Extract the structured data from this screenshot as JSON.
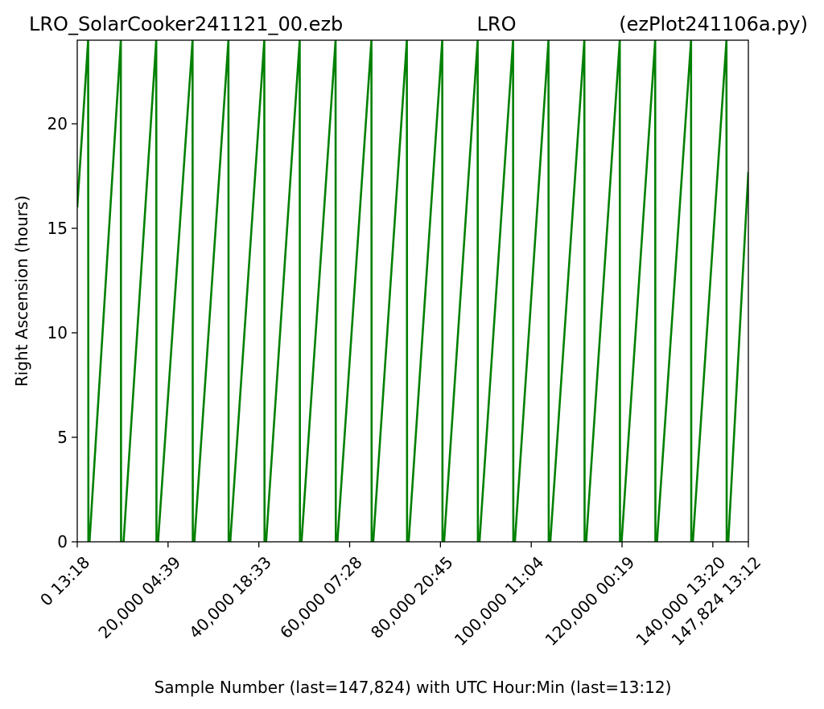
{
  "chart_data": {
    "type": "line",
    "title_left": "LRO_SolarCooker241121_00.ezb",
    "title_center": "LRO",
    "title_right": "(ezPlot241106a.py)",
    "xlabel": "Sample Number (last=147,824) with UTC Hour:Min (last=13:12)",
    "ylabel": "Right Ascension (hours)",
    "xlim": [
      0,
      147824
    ],
    "ylim": [
      0,
      24
    ],
    "yticks": [
      0,
      5,
      10,
      15,
      20
    ],
    "xticks": [
      {
        "value": 0,
        "label": "0  13:18"
      },
      {
        "value": 20000,
        "label": "20,000  04:39"
      },
      {
        "value": 40000,
        "label": "40,000  18:33"
      },
      {
        "value": 60000,
        "label": "60,000  07:28"
      },
      {
        "value": 80000,
        "label": "80,000  20:45"
      },
      {
        "value": 100000,
        "label": "100,000  11:04"
      },
      {
        "value": 120000,
        "label": "120,000  00:19"
      },
      {
        "value": 140000,
        "label": "140,000  13:20"
      },
      {
        "value": 147824,
        "label": "147,824  13:12"
      }
    ],
    "series_color": "#008000",
    "series": [
      {
        "x": [
          0,
          2400,
          2450,
          2700,
          9600,
          9650,
          10200,
          17400,
          17450,
          17800,
          25400,
          25450,
          25800,
          33300,
          33350,
          33700,
          41200,
          41250,
          41600,
          49000,
          49050,
          49400,
          56900,
          56950,
          57300,
          64800,
          64850,
          65200,
          72600,
          72650,
          73000,
          80400,
          80450,
          80800,
          88200,
          88250,
          88600,
          96000,
          96050,
          96400,
          103800,
          103850,
          104200,
          111700,
          111750,
          112100,
          119500,
          119550,
          119900,
          127300,
          127350,
          127700,
          135200,
          135250,
          135600,
          143000,
          143050,
          143400,
          147824
        ],
        "y": [
          16.0,
          24.0,
          0.0,
          0.0,
          24.0,
          0.0,
          0.0,
          24.0,
          0.0,
          0.0,
          24.0,
          0.0,
          0.0,
          24.0,
          0.0,
          0.0,
          24.0,
          0.0,
          0.0,
          24.0,
          0.0,
          0.0,
          24.0,
          0.0,
          0.0,
          24.0,
          0.0,
          0.0,
          24.0,
          0.0,
          0.0,
          24.0,
          0.0,
          0.0,
          24.0,
          0.0,
          0.0,
          24.0,
          0.0,
          0.0,
          24.0,
          0.0,
          0.0,
          24.0,
          0.0,
          0.0,
          24.0,
          0.0,
          0.0,
          24.0,
          0.0,
          0.0,
          24.0,
          0.0,
          0.0,
          24.0,
          0.0,
          0.0,
          17.7
        ]
      }
    ]
  }
}
